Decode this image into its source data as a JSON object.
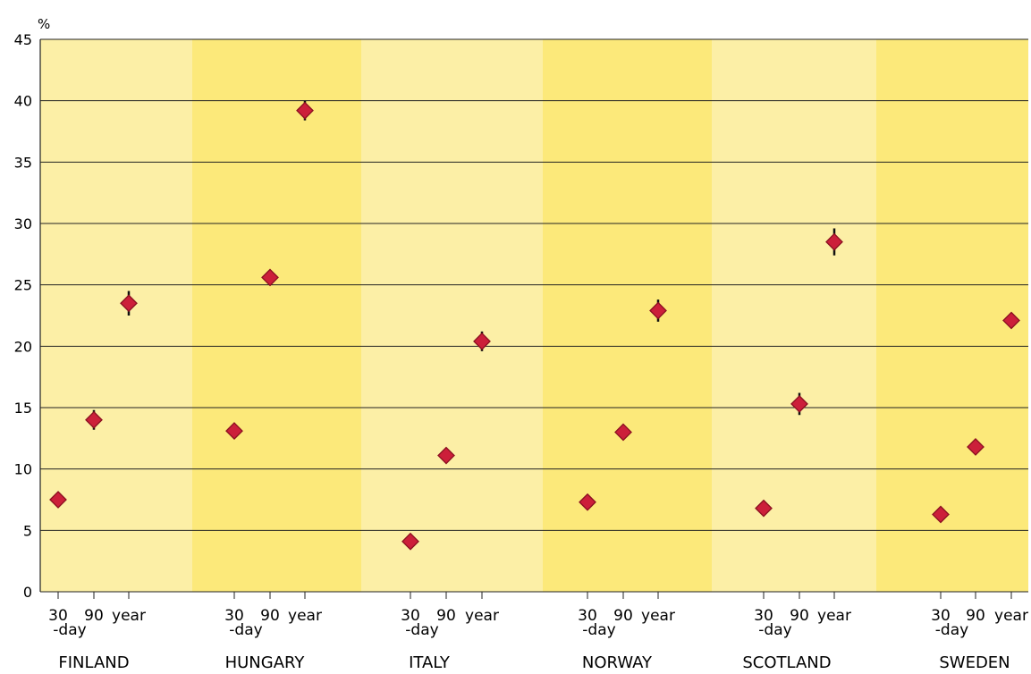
{
  "chart_data": {
    "type": "scatter",
    "y_unit_label": "%",
    "ylim": [
      0,
      45
    ],
    "y_ticks": [
      "0",
      "5",
      "10",
      "15",
      "20",
      "25",
      "30",
      "35",
      "40",
      "45"
    ],
    "grid": "horizontal",
    "band_colors": [
      "#fcefa6",
      "#fce97a"
    ],
    "marker_color": "#cc1f3a",
    "period_labels": [
      "30",
      "90",
      "year"
    ],
    "period_sublabel": "-day",
    "groups": [
      {
        "country": "FINLAND",
        "values": [
          7.5,
          14.0,
          23.5
        ],
        "error": [
          null,
          0.8,
          1.0
        ]
      },
      {
        "country": "HUNGARY",
        "values": [
          13.1,
          25.6,
          39.2
        ],
        "error": [
          null,
          0.6,
          0.8
        ]
      },
      {
        "country": "ITALY",
        "values": [
          4.1,
          11.1,
          20.4
        ],
        "error": [
          null,
          null,
          0.8
        ]
      },
      {
        "country": "NORWAY",
        "values": [
          7.3,
          13.0,
          22.9
        ],
        "error": [
          null,
          null,
          0.9
        ]
      },
      {
        "country": "SCOTLAND",
        "values": [
          6.8,
          15.3,
          28.5
        ],
        "error": [
          null,
          0.9,
          1.1
        ]
      },
      {
        "country": "SWEDEN",
        "values": [
          6.3,
          11.8,
          22.1
        ],
        "error": [
          null,
          null,
          null
        ]
      }
    ]
  }
}
